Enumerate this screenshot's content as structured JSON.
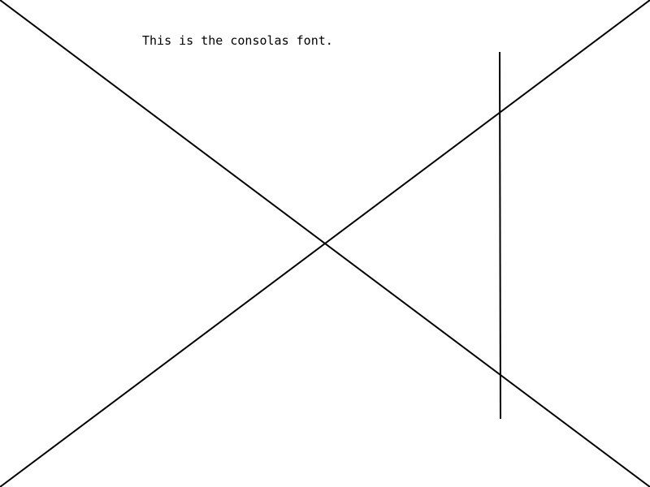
{
  "canvas": {
    "background": "#ffffff",
    "stroke_color": "#000000",
    "text_color": "#000000"
  },
  "caption": {
    "text": "This is the consolas font."
  }
}
